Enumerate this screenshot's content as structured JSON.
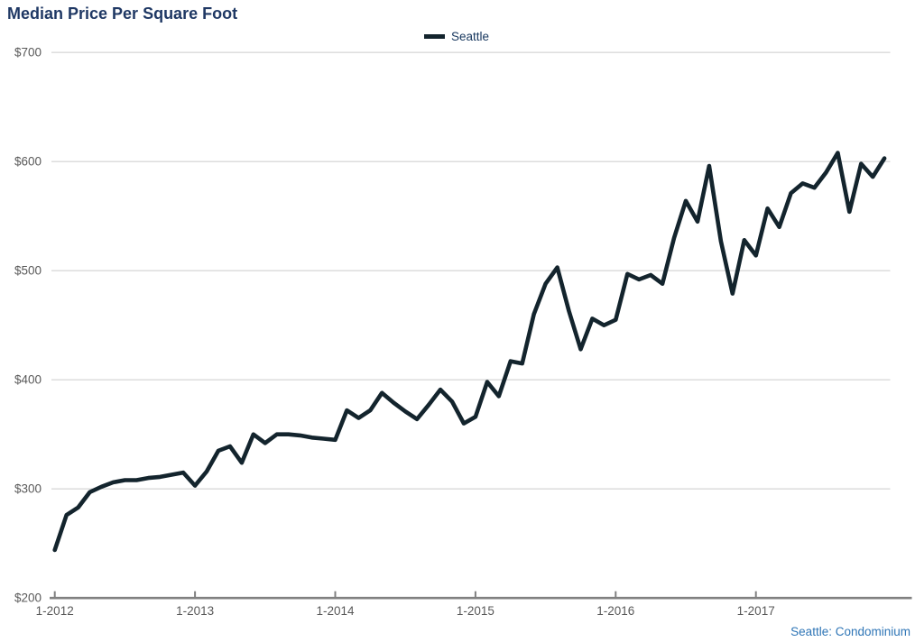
{
  "title": "Median Price Per Square Foot",
  "legend": {
    "series_label": "Seattle",
    "swatch_color": "#13242d",
    "position": "top-center"
  },
  "source_note": "Seattle: Condominium",
  "colors": {
    "title": "#1F3864",
    "legend_text": "#17375E",
    "source_note": "#2E75B6",
    "line": "#13242d",
    "grid": "#d9d9d9",
    "axis": "#808080",
    "tick_label": "#595959",
    "background": "#ffffff"
  },
  "chart_data": {
    "type": "line",
    "title": "Median Price Per Square Foot",
    "xlabel": "",
    "ylabel": "",
    "ylim": [
      200,
      700
    ],
    "y_tick_values": [
      200,
      300,
      400,
      500,
      600,
      700
    ],
    "y_tick_labels": [
      "$200",
      "$300",
      "$400",
      "$500",
      "$600",
      "$700"
    ],
    "x_tick_labels": [
      "1-2012",
      "1-2013",
      "1-2014",
      "1-2015",
      "1-2016",
      "1-2017"
    ],
    "x_tick_month_indexes": [
      0,
      12,
      24,
      36,
      48,
      60
    ],
    "frequency": "monthly",
    "start_month": "1-2012",
    "end_month": "12-2017",
    "grid": "horizontal",
    "legend_position": "top-center",
    "series": [
      {
        "name": "Seattle",
        "values": [
          244,
          276,
          283,
          297,
          302,
          306,
          308,
          308,
          310,
          311,
          313,
          315,
          303,
          316,
          335,
          339,
          324,
          350,
          342,
          350,
          350,
          349,
          347,
          346,
          345,
          372,
          365,
          372,
          388,
          379,
          371,
          364,
          377,
          391,
          380,
          360,
          366,
          398,
          385,
          417,
          415,
          460,
          488,
          503,
          463,
          428,
          456,
          450,
          455,
          497,
          492,
          496,
          488,
          530,
          564,
          545,
          596,
          527,
          479,
          528,
          514,
          557,
          540,
          571,
          580,
          576,
          590,
          608,
          554,
          598,
          586,
          603
        ]
      }
    ]
  }
}
